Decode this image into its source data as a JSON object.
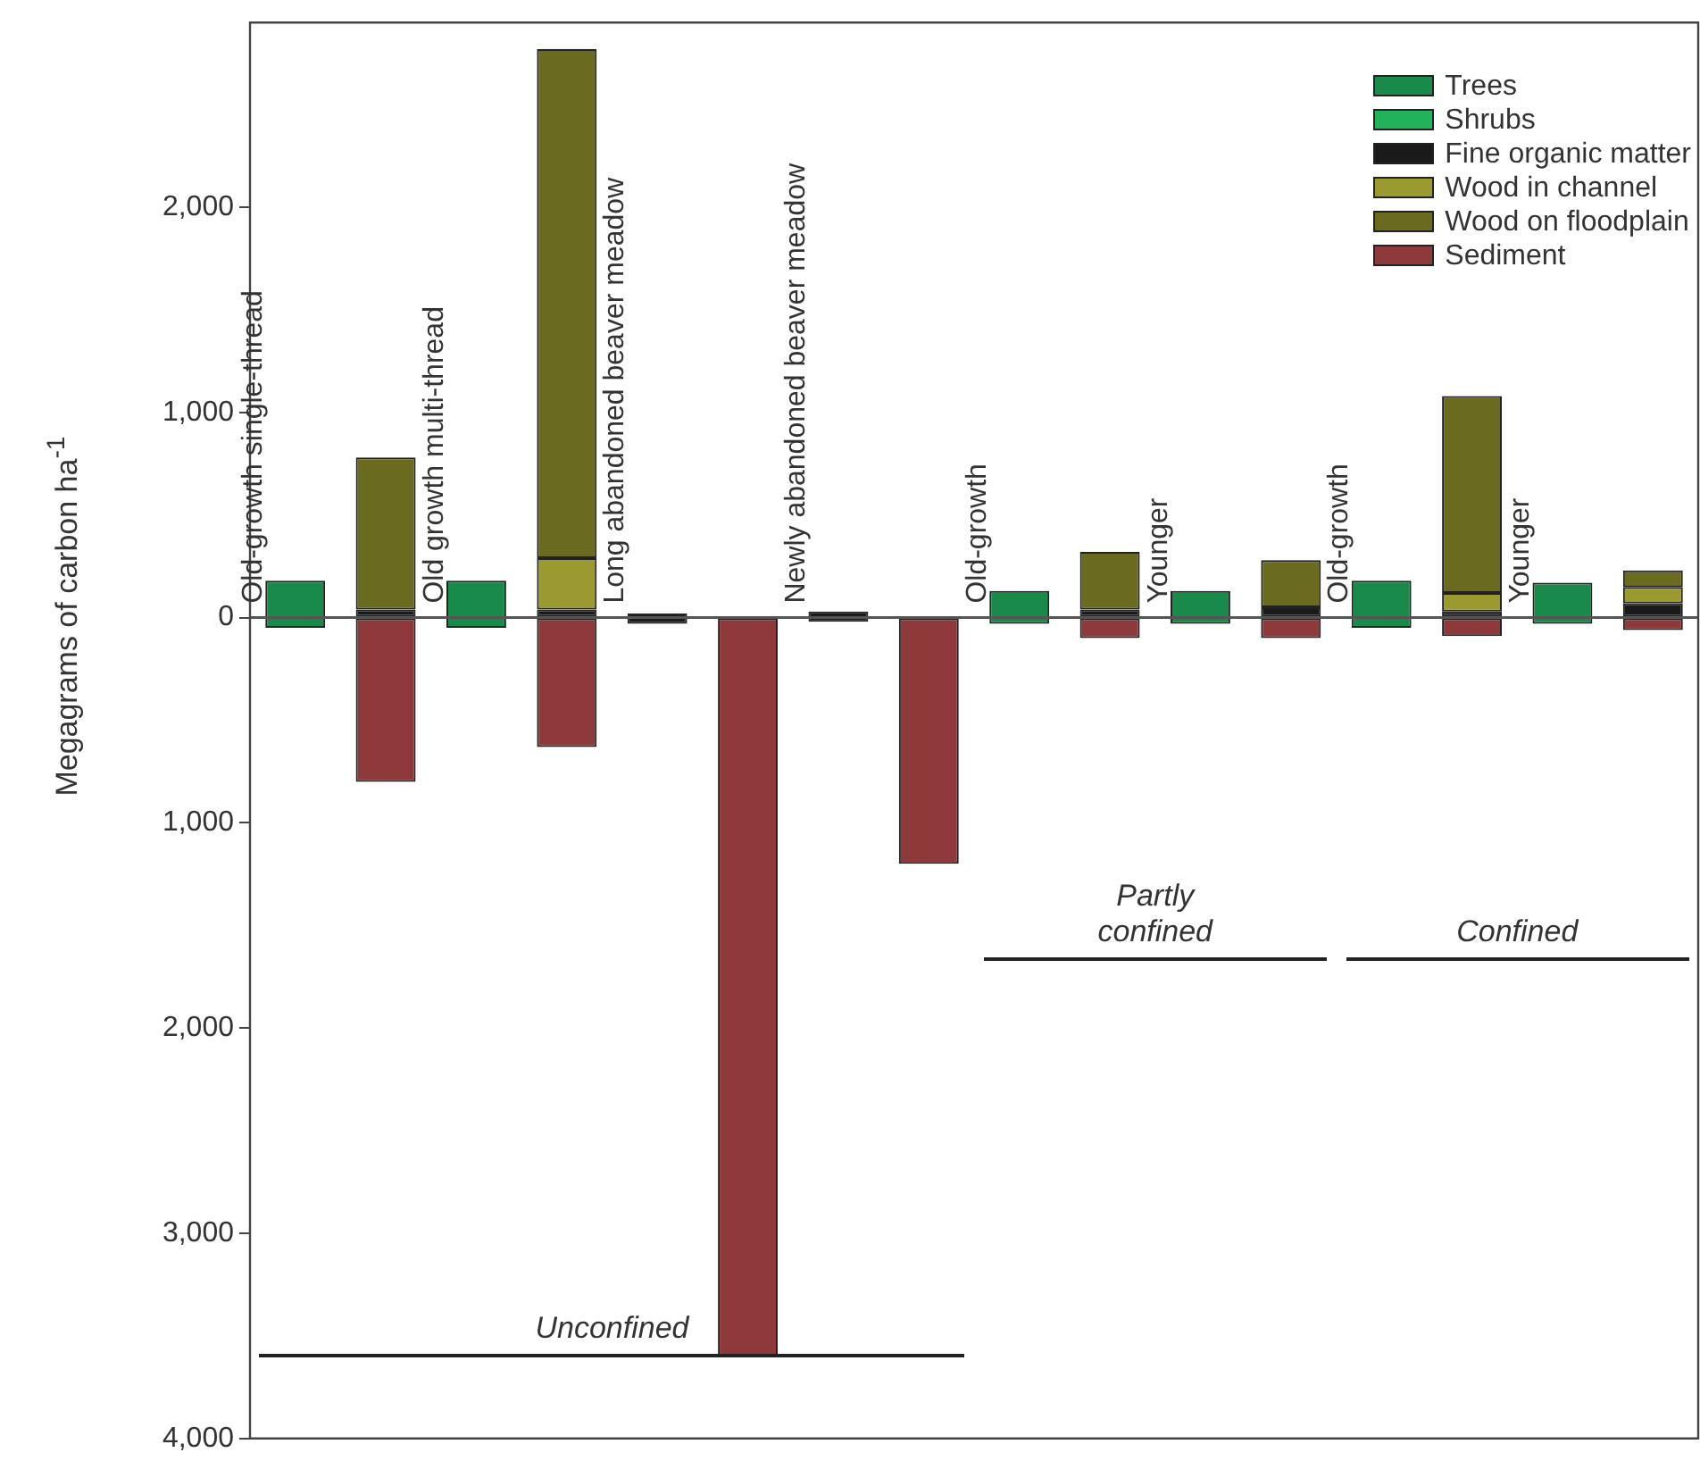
{
  "chart_data": {
    "type": "bar",
    "stacked": true,
    "ylabel": "Megagrams of carbon ha$^{-1}$",
    "categories": [
      "Old-growth single-thread",
      null,
      "Old growth multi-thread",
      null,
      "Long abandoned beaver meadow",
      null,
      "Newly abandoned beaver meadow",
      null,
      "Old-growth",
      null,
      "Younger",
      null,
      "Old-growth",
      null,
      "Younger",
      null
    ],
    "series": [
      {
        "name": "Trees",
        "color": "#1a8a4a",
        "values": [
          230,
          null,
          230,
          null,
          null,
          null,
          null,
          null,
          160,
          null,
          160,
          null,
          230,
          null,
          200,
          null
        ],
        "base": [
          -50,
          null,
          -50,
          null,
          null,
          null,
          null,
          null,
          -30,
          null,
          -30,
          null,
          -50,
          null,
          -30,
          null
        ]
      },
      {
        "name": "Shrubs",
        "color": "#22b35a",
        "values": [
          null,
          null,
          null,
          null,
          null,
          null,
          null,
          null,
          null,
          null,
          null,
          null,
          null,
          null,
          null,
          null
        ]
      },
      {
        "color": "#1a1a1a",
        "values": [
          null,
          null,
          null,
          null,
          50,
          null,
          50,
          null,
          null,
          null,
          null,
          null,
          null,
          null,
          null,
          null
        ],
        "base": [
          null,
          null,
          null,
          null,
          -30,
          null,
          -20,
          null,
          null,
          null,
          null,
          null,
          null,
          null,
          null,
          null
        ]
      },
      {
        "name": "Fine organic matter",
        "color": "#1a1a1a",
        "values": [
          null,
          40,
          null,
          40,
          null,
          null,
          null,
          null,
          null,
          40,
          null,
          50,
          null,
          30,
          null,
          70
        ]
      },
      {
        "name": "Wood in channel",
        "color": "#9a9a30",
        "values": [
          null,
          null,
          null,
          250,
          null,
          null,
          null,
          null,
          null,
          null,
          null,
          null,
          null,
          90,
          null,
          80
        ]
      },
      {
        "name": "Wood on floodplain",
        "color": "#6b6b20",
        "values": [
          null,
          740,
          null,
          2480,
          null,
          null,
          null,
          null,
          null,
          280,
          null,
          230,
          null,
          960,
          null,
          80
        ]
      },
      {
        "name": "Sediment",
        "color": "#8e3a3a",
        "values": [
          null,
          -800,
          null,
          -630,
          null,
          -3600,
          null,
          -1200,
          null,
          -100,
          null,
          -100,
          null,
          -90,
          null,
          -60
        ]
      }
    ],
    "ylim": [
      -4000,
      2900
    ],
    "yticks": [
      {
        "value": 2000,
        "label": "2,000"
      },
      {
        "value": 1000,
        "label": "1,000"
      },
      0,
      {
        "value": -1000,
        "label": "1,000"
      },
      {
        "value": -2000,
        "label": "2,000"
      },
      {
        "value": -3000,
        "label": "3,000"
      },
      {
        "value": -4000,
        "label": "4,000"
      }
    ],
    "grid": false,
    "legend": "top right",
    "annotations": [
      "Unconfined",
      "Partly\nconfined",
      "Confined"
    ]
  }
}
